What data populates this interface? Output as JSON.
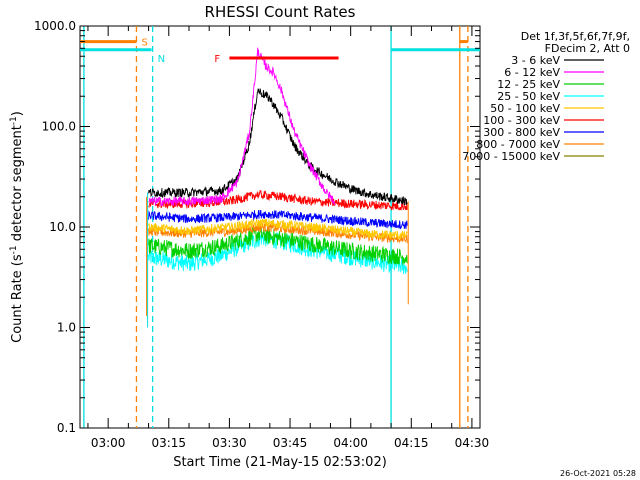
{
  "chart_data": {
    "type": "line",
    "title": "RHESSI Count Rates",
    "xlabel": "Start Time (21-May-15 02:53:02)",
    "ylabel_main": "Count Rate (s",
    "ylabel_sup1": "-1",
    "ylabel_mid": " detector segment",
    "ylabel_sup2": "-1",
    "ylabel_end": ")",
    "yscale": "log",
    "ylim": [
      0.1,
      1000
    ],
    "xlim": [
      "02:53:02",
      "04:32:00"
    ],
    "x_ticks": [
      "03:00",
      "03:15",
      "03:30",
      "03:45",
      "04:00",
      "04:15",
      "04:30"
    ],
    "y_ticks": [
      "0.1",
      "1.0",
      "10.0",
      "100.0",
      "1000.0"
    ],
    "legend_header_1": "Det 1f,3f,5f,6f,7f,9f,",
    "legend_header_2": "FDecim 2, Att 0",
    "legend_position": "right",
    "timestamp": "26-Oct-2021 05:28",
    "markers": {
      "S": {
        "label": "S",
        "color": "#ff8000"
      },
      "N": {
        "label": "N",
        "color": "#00e0e0"
      },
      "F": {
        "label": "F",
        "color": "#ff0000",
        "start": "03:30",
        "end": "03:57",
        "value": 480
      }
    },
    "data_window": [
      "03:10",
      "04:14"
    ],
    "event_lines": [
      {
        "time": "02:54",
        "style": "solid",
        "color": "#00e0e0"
      },
      {
        "time": "03:07",
        "style": "dashed",
        "color": "#ff8000"
      },
      {
        "time": "03:11",
        "style": "dashed",
        "color": "#00e0e0"
      },
      {
        "time": "04:10",
        "style": "solid",
        "color": "#00e0e0"
      },
      {
        "time": "04:27",
        "style": "solid",
        "color": "#ff8000"
      },
      {
        "time": "04:29",
        "style": "dashed",
        "color": "#ff8000"
      }
    ],
    "series": [
      {
        "name": "3 - 6 keV",
        "color": "#000000",
        "points": [
          [
            "03:10",
            22
          ],
          [
            "03:20",
            22
          ],
          [
            "03:28",
            23
          ],
          [
            "03:32",
            30
          ],
          [
            "03:35",
            70
          ],
          [
            "03:37",
            230
          ],
          [
            "03:40",
            190
          ],
          [
            "03:43",
            120
          ],
          [
            "03:46",
            65
          ],
          [
            "03:50",
            40
          ],
          [
            "03:55",
            30
          ],
          [
            "04:00",
            24
          ],
          [
            "04:05",
            21
          ],
          [
            "04:14",
            18
          ]
        ]
      },
      {
        "name": "6 - 12 keV",
        "color": "#ff00ff",
        "points": [
          [
            "03:10",
            18
          ],
          [
            "03:20",
            18
          ],
          [
            "03:28",
            19
          ],
          [
            "03:32",
            28
          ],
          [
            "03:35",
            90
          ],
          [
            "03:37",
            560
          ],
          [
            "03:39",
            400
          ],
          [
            "03:41",
            340
          ],
          [
            "03:43",
            220
          ],
          [
            "03:46",
            90
          ],
          [
            "03:50",
            40
          ],
          [
            "03:54",
            22
          ],
          [
            "03:56",
            18
          ]
        ]
      },
      {
        "name": "12 - 25 keV",
        "color": "#00d000",
        "points": [
          [
            "03:10",
            6.5
          ],
          [
            "03:20",
            5.8
          ],
          [
            "03:28",
            6.5
          ],
          [
            "03:33",
            7.5
          ],
          [
            "03:37",
            8.5
          ],
          [
            "03:42",
            7.8
          ],
          [
            "03:50",
            6.8
          ],
          [
            "04:00",
            5.8
          ],
          [
            "04:10",
            5.2
          ],
          [
            "04:14",
            5.0
          ]
        ]
      },
      {
        "name": "25 - 50 keV",
        "color": "#00ffff",
        "points": [
          [
            "03:10",
            5.0
          ],
          [
            "03:20",
            4.3
          ],
          [
            "03:28",
            5.2
          ],
          [
            "03:33",
            6.5
          ],
          [
            "03:38",
            7.8
          ],
          [
            "03:44",
            7.0
          ],
          [
            "03:50",
            6.0
          ],
          [
            "04:00",
            5.0
          ],
          [
            "04:10",
            4.2
          ],
          [
            "04:14",
            4.0
          ]
        ]
      },
      {
        "name": "50 - 100 keV",
        "color": "#ffc800",
        "points": [
          [
            "03:10",
            10
          ],
          [
            "03:20",
            9.2
          ],
          [
            "03:30",
            10
          ],
          [
            "03:38",
            11
          ],
          [
            "03:45",
            10.5
          ],
          [
            "03:55",
            9.5
          ],
          [
            "04:05",
            8.5
          ],
          [
            "04:14",
            8.2
          ]
        ]
      },
      {
        "name": "100 - 300 keV",
        "color": "#ff0000",
        "points": [
          [
            "03:10",
            17
          ],
          [
            "03:20",
            17
          ],
          [
            "03:30",
            18
          ],
          [
            "03:37",
            21
          ],
          [
            "03:43",
            20
          ],
          [
            "03:50",
            18
          ],
          [
            "04:00",
            17
          ],
          [
            "04:14",
            16
          ]
        ]
      },
      {
        "name": "300 - 800 keV",
        "color": "#0000ff",
        "points": [
          [
            "03:10",
            13
          ],
          [
            "03:20",
            12
          ],
          [
            "03:30",
            12.5
          ],
          [
            "03:38",
            13.5
          ],
          [
            "03:45",
            13
          ],
          [
            "03:55",
            12
          ],
          [
            "04:05",
            11
          ],
          [
            "04:14",
            10.5
          ]
        ]
      },
      {
        "name": "800 - 7000 keV",
        "color": "#ff8000",
        "points": [
          [
            "03:10",
            9
          ],
          [
            "03:20",
            8.6
          ],
          [
            "03:30",
            9
          ],
          [
            "03:38",
            10
          ],
          [
            "03:45",
            9.5
          ],
          [
            "03:55",
            8.8
          ],
          [
            "04:05",
            8
          ],
          [
            "04:14",
            7.6
          ]
        ]
      },
      {
        "name": "7000 - 15000 keV",
        "color": "#808000",
        "points": []
      }
    ]
  }
}
